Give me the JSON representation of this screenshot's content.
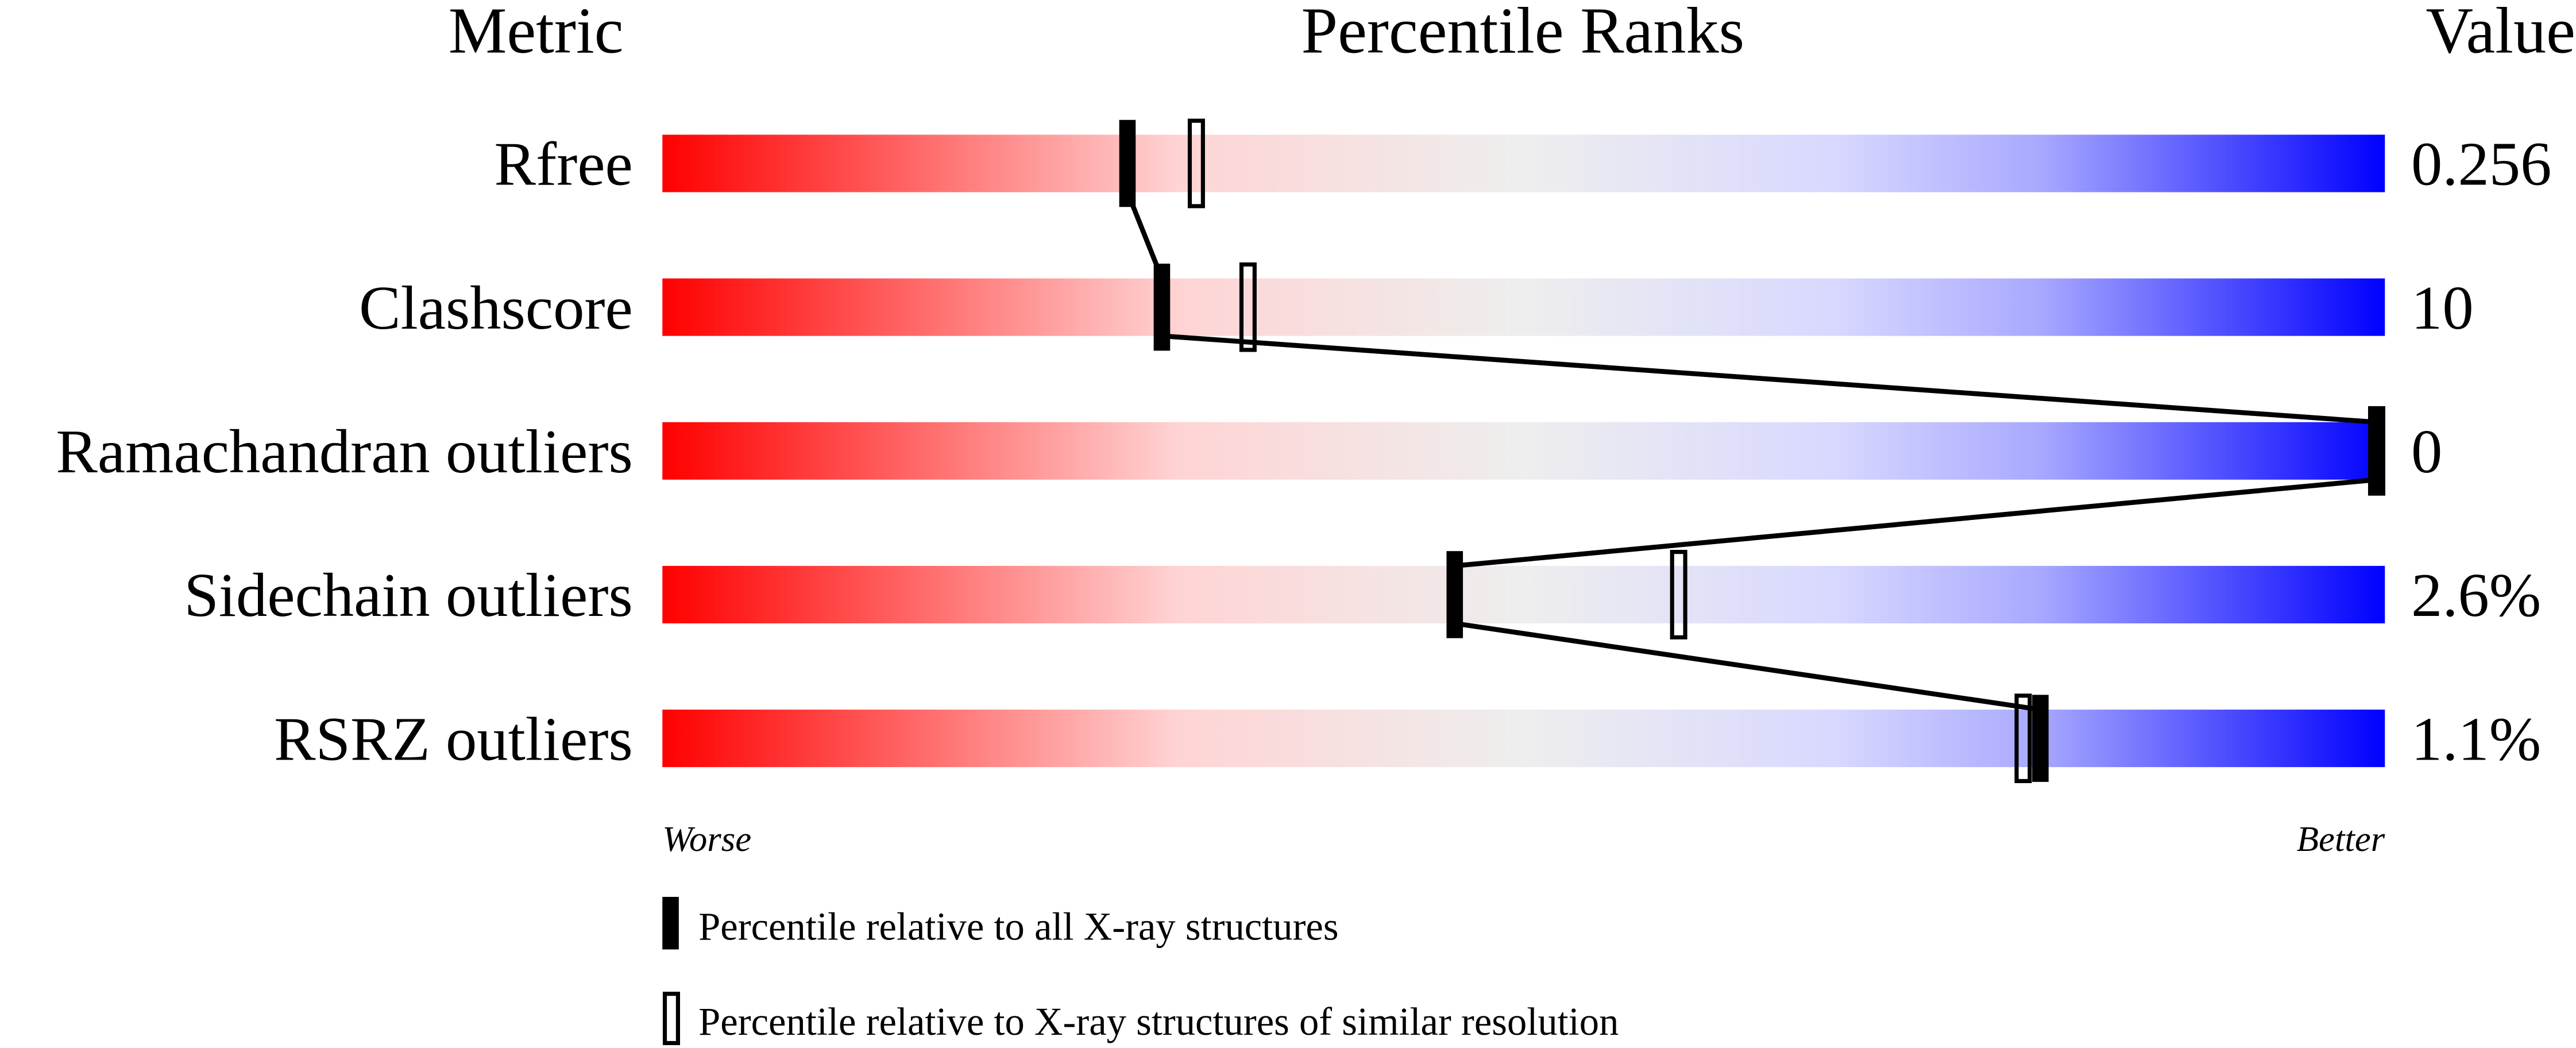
{
  "chart_data": {
    "type": "percentile-ranks",
    "headers": {
      "metric": "Metric",
      "ranks": "Percentile Ranks",
      "value": "Value"
    },
    "xlim": [
      0,
      100
    ],
    "axis_labels": {
      "left": "Worse",
      "right": "Better"
    },
    "colors": {
      "worse": "#ff0000",
      "mid": "#eeeeee",
      "better": "#0000ff",
      "marker": "#000000"
    },
    "rows": [
      {
        "metric": "Rfree",
        "value": "0.256",
        "percentile_all": 27,
        "percentile_similar": 31
      },
      {
        "metric": "Clashscore",
        "value": "10",
        "percentile_all": 29,
        "percentile_similar": 34
      },
      {
        "metric": "Ramachandran outliers",
        "value": "0",
        "percentile_all": 100,
        "percentile_similar": 100
      },
      {
        "metric": "Sidechain outliers",
        "value": "2.6%",
        "percentile_all": 46,
        "percentile_similar": 59
      },
      {
        "metric": "RSRZ outliers",
        "value": "1.1%",
        "percentile_all": 80,
        "percentile_similar": 79
      }
    ],
    "legend": [
      {
        "marker": "filled",
        "label": "Percentile relative to all X-ray structures"
      },
      {
        "marker": "hollow",
        "label": "Percentile relative to X-ray structures of similar resolution"
      }
    ]
  }
}
